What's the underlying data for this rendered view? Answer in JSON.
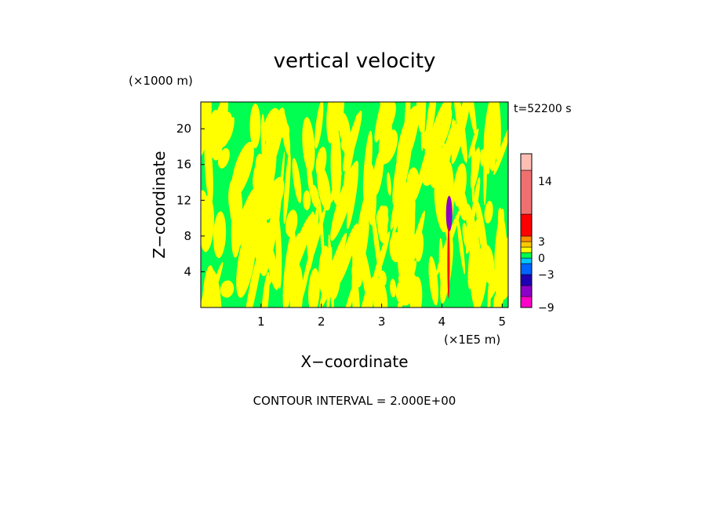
{
  "chart_data": {
    "type": "heatmap",
    "title": "vertical velocity",
    "xlabel": "X−coordinate",
    "ylabel": "Z−coordinate",
    "x_unit": "(×1E5 m)",
    "y_unit": "(×1000 m)",
    "time_label": "t=52200 s",
    "footer": "CONTOUR INTERVAL = 2.000E+00",
    "xlim": [
      0,
      5.1
    ],
    "ylim": [
      0,
      23
    ],
    "x_ticks": [
      1,
      2,
      3,
      4,
      5
    ],
    "x_tick_labels": [
      "1",
      "2",
      "3",
      "4",
      "5"
    ],
    "y_ticks": [
      4,
      8,
      12,
      16,
      20
    ],
    "y_tick_labels": [
      "4",
      "8",
      "12",
      "16",
      "20"
    ],
    "grid": false,
    "field_colors": {
      "positive": "#ffff00",
      "negative": "#00ff50"
    },
    "colorbar": {
      "min": -9,
      "max": 19,
      "labels": [
        {
          "value": 14,
          "text": "14"
        },
        {
          "value": 3,
          "text": "3"
        },
        {
          "value": 0,
          "text": "0"
        },
        {
          "value": -3,
          "text": "−3"
        },
        {
          "value": -9,
          "text": "−9"
        }
      ],
      "bins": [
        {
          "from": -9,
          "to": -7,
          "color": "#ff00c8"
        },
        {
          "from": -7,
          "to": -5,
          "color": "#8c00c8"
        },
        {
          "from": -5,
          "to": -3,
          "color": "#1e00b4"
        },
        {
          "from": -3,
          "to": -1,
          "color": "#0064ff"
        },
        {
          "from": -1,
          "to": 0,
          "color": "#00c8ff"
        },
        {
          "from": 0,
          "to": 1,
          "color": "#00ff50"
        },
        {
          "from": 1,
          "to": 2,
          "color": "#ffff00"
        },
        {
          "from": 2,
          "to": 3,
          "color": "#ffc800"
        },
        {
          "from": 3,
          "to": 4,
          "color": "#ff8c00"
        },
        {
          "from": 4,
          "to": 8,
          "color": "#ff0000"
        },
        {
          "from": 8,
          "to": 16,
          "color": "#f07070"
        },
        {
          "from": 16,
          "to": 19,
          "color": "#ffbeb4"
        }
      ]
    },
    "features": [
      {
        "x": 4.12,
        "z_from": 8.5,
        "z_to": 12.5,
        "color": "#8c00c8",
        "kind": "downdraft core"
      },
      {
        "x": 4.11,
        "z_from": 1.0,
        "z_to": 9.0,
        "color": "#ff0000",
        "kind": "updraft streak"
      }
    ]
  }
}
